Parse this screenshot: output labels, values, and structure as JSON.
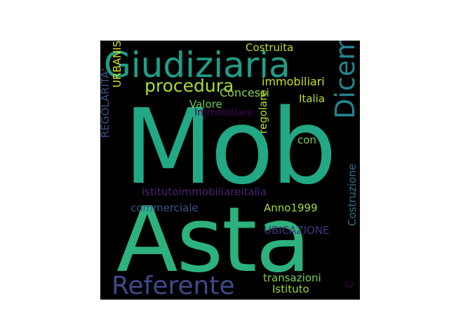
{
  "word_cloud": {
    "background": "#000000",
    "words": [
      {
        "id": "mob",
        "text": "Mob",
        "color": "#22a884",
        "orientation": "horizontal"
      },
      {
        "id": "asta",
        "text": "Asta",
        "color": "#2db27d",
        "orientation": "horizontal"
      },
      {
        "id": "giudiziaria",
        "text": "Giudiziaria",
        "color": "#1f9e89",
        "orientation": "horizontal"
      },
      {
        "id": "dicembre",
        "text": "Dicembre",
        "color": "#26828e",
        "orientation": "vertical"
      },
      {
        "id": "referente",
        "text": "Referente",
        "color": "#3e4989",
        "orientation": "horizontal"
      },
      {
        "id": "procedura",
        "text": "procedura",
        "color": "#a8db34",
        "orientation": "horizontal"
      },
      {
        "id": "immobiliari",
        "text": "immobiliari",
        "color": "#cfe11c",
        "orientation": "horizontal"
      },
      {
        "id": "costruita",
        "text": "Costruita",
        "color": "#b5de2b",
        "orientation": "horizontal"
      },
      {
        "id": "concessi",
        "text": "Concessi",
        "color": "#84d44b",
        "orientation": "horizontal"
      },
      {
        "id": "italia",
        "text": "Italia",
        "color": "#b8de29",
        "orientation": "horizontal"
      },
      {
        "id": "valore",
        "text": "Valore",
        "color": "#6ccd5a",
        "orientation": "horizontal"
      },
      {
        "id": "immobiliare",
        "text": "Immobiliare",
        "color": "#440154",
        "orientation": "horizontal"
      },
      {
        "id": "urbanistica",
        "text": "URBANISTICA",
        "color": "#d8e219",
        "orientation": "vertical"
      },
      {
        "id": "regolarita",
        "text": "REGOLARITA'",
        "color": "#3b528b",
        "orientation": "vertical"
      },
      {
        "id": "regolare",
        "text": "regolare",
        "color": "#bddf26",
        "orientation": "vertical"
      },
      {
        "id": "con",
        "text": "con",
        "color": "#7ad151",
        "orientation": "horizontal"
      },
      {
        "id": "istituto-immobiliare",
        "text": "istitutoimmobiliareitalia",
        "color": "#482475",
        "orientation": "horizontal"
      },
      {
        "id": "commerciale",
        "text": "commerciale",
        "color": "#39568c",
        "orientation": "horizontal"
      },
      {
        "id": "anno",
        "text": "Anno1999",
        "color": "#a5db36",
        "orientation": "horizontal"
      },
      {
        "id": "ubicazione",
        "text": "UBICAZIONE",
        "color": "#46327e",
        "orientation": "horizontal"
      },
      {
        "id": "costruzione",
        "text": "Costruzione",
        "color": "#2c728e",
        "orientation": "vertical"
      },
      {
        "id": "transazioni",
        "text": "transazioni",
        "color": "#7ad151",
        "orientation": "horizontal"
      },
      {
        "id": "istituto",
        "text": "Istituto",
        "color": "#9bd93c",
        "orientation": "horizontal"
      },
      {
        "id": "c-fragment",
        "text": "C",
        "color": "#440154",
        "orientation": "vertical"
      }
    ]
  }
}
